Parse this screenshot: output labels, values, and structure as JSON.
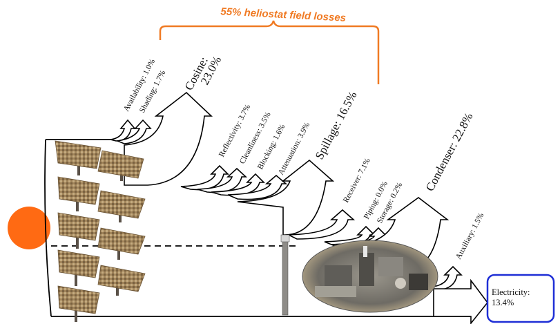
{
  "brace_label": "55% heliostat field losses",
  "losses": {
    "availability": "Availability: 1.0%",
    "shading": "Shading: 1.7%",
    "cosine_line1": "Cosine:",
    "cosine_line2": "23.0%",
    "reflectivity": "Reflectivity: 3.7%",
    "cleanliness": "Cleanliness: 3.5%",
    "blocking": "Blocking: 1.6%",
    "attenuation": "Attenuation: 3.9%",
    "spillage": "Spillage: 16.5%",
    "receiver": "Receiver: 7.1%",
    "piping": "Piping: 0.0%",
    "storage": "Storage: 0.2%",
    "condenser": "Condenser: 22.8%",
    "auxiliary": "Auxiliary: 1.5%"
  },
  "output": {
    "line1": "Electricity:",
    "line2": "13.4%"
  },
  "colors": {
    "sun": "#ff6a13",
    "brace": "#f07a23",
    "output_box": "#1f2fd6",
    "heliostat": "#9a7a4e",
    "plant": "#7d7a73"
  }
}
